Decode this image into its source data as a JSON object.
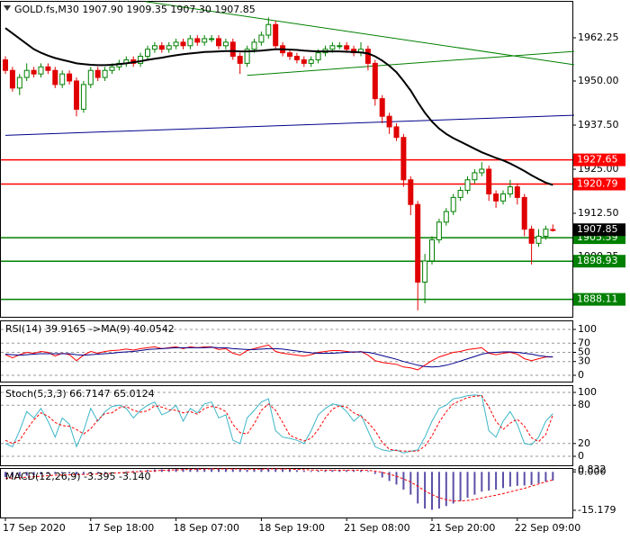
{
  "chart_data": [
    {
      "type": "candlestick",
      "title": "GOLD.fs,M30  1907.90 1909.35 1907.30 1907.85",
      "categories": [
        "17 Sep 2020",
        null,
        null,
        null,
        null,
        null,
        null,
        null,
        null,
        null,
        null,
        null,
        "17 Sep 18:00",
        null,
        null,
        null,
        null,
        null,
        null,
        null,
        null,
        null,
        null,
        null,
        "18 Sep 07:00",
        null,
        null,
        null,
        null,
        null,
        null,
        null,
        null,
        null,
        null,
        null,
        "18 Sep 19:00",
        null,
        null,
        null,
        null,
        null,
        null,
        null,
        null,
        null,
        null,
        null,
        "21 Sep 08:00",
        null,
        null,
        null,
        null,
        null,
        null,
        null,
        null,
        null,
        null,
        null,
        "21 Sep 20:00",
        null,
        null,
        null,
        null,
        null,
        null,
        null,
        null,
        null,
        null,
        null,
        "22 Sep 09:00",
        null,
        null,
        null,
        null,
        null
      ],
      "open": [
        1956,
        1953,
        1948,
        1951,
        1953,
        1952,
        1954,
        1953,
        1949,
        1952,
        1950,
        1942,
        1949,
        1953,
        1951,
        1953,
        1954,
        1955,
        1956,
        1955,
        1957,
        1959,
        1960,
        1959,
        1960,
        1961,
        1960,
        1962,
        1961,
        1962,
        1962,
        1960,
        1961,
        1957,
        1955,
        1959,
        1961,
        1963,
        1966,
        1960,
        1958,
        1957,
        1956,
        1955,
        1956,
        1958,
        1959,
        1960,
        1960,
        1959,
        1958,
        1959,
        1955,
        1945,
        1940,
        1937,
        1934,
        1922,
        1915,
        1893,
        1899,
        1905,
        1910,
        1913,
        1917,
        1919,
        1922,
        1924,
        1925,
        1918,
        1916,
        1918,
        1920,
        1917,
        1908,
        1904,
        1906,
        1907.9
      ],
      "high": [
        1957,
        1954,
        1952,
        1955,
        1954,
        1955,
        1955,
        1954,
        1953,
        1953,
        1951,
        1950,
        1954,
        1954,
        1954,
        1955,
        1956,
        1957,
        1957,
        1958,
        1960,
        1961,
        1961,
        1961,
        1962,
        1962,
        1963,
        1963,
        1963,
        1963,
        1963,
        1962,
        1962,
        1958,
        1960,
        1962,
        1964,
        1968,
        1967,
        1961,
        1959,
        1958,
        1957,
        1957,
        1959,
        1960,
        1961,
        1961,
        1961,
        1960,
        1961,
        1960,
        1956,
        1946,
        1941,
        1938,
        1935,
        1923,
        1916,
        1901,
        1906,
        1911,
        1914,
        1918,
        1920,
        1923,
        1925,
        1927,
        1926,
        1919,
        1919,
        1922,
        1921,
        1918,
        1909,
        1908,
        1909,
        1909.35
      ],
      "low": [
        1952,
        1947,
        1946,
        1950,
        1951,
        1951,
        1952,
        1948,
        1948,
        1949,
        1940,
        1941,
        1948,
        1950,
        1950,
        1952,
        1953,
        1954,
        1954,
        1954,
        1956,
        1958,
        1958,
        1958,
        1959,
        1959,
        1959,
        1960,
        1960,
        1961,
        1959,
        1959,
        1956,
        1952,
        1954,
        1958,
        1960,
        1962,
        1959,
        1957,
        1956,
        1955,
        1954,
        1954,
        1955,
        1957,
        1958,
        1959,
        1958,
        1957,
        1957,
        1953,
        1943,
        1938,
        1935,
        1933,
        1920,
        1912,
        1885,
        1887,
        1898,
        1904,
        1909,
        1912,
        1916,
        1918,
        1921,
        1923,
        1916,
        1914,
        1915,
        1917,
        1915,
        1906,
        1898,
        1903,
        1905,
        1907.3
      ],
      "close": [
        1953,
        1948,
        1951,
        1953,
        1952,
        1954,
        1953,
        1949,
        1952,
        1950,
        1942,
        1949,
        1953,
        1951,
        1953,
        1954,
        1955,
        1956,
        1955,
        1957,
        1959,
        1960,
        1959,
        1960,
        1961,
        1960,
        1962,
        1961,
        1962,
        1962,
        1960,
        1961,
        1957,
        1955,
        1959,
        1961,
        1963,
        1966,
        1960,
        1958,
        1957,
        1956,
        1955,
        1956,
        1958,
        1959,
        1960,
        1960,
        1959,
        1958,
        1959,
        1955,
        1945,
        1940,
        1937,
        1934,
        1922,
        1915,
        1893,
        1899,
        1905,
        1910,
        1913,
        1917,
        1919,
        1922,
        1924,
        1925,
        1918,
        1916,
        1918,
        1920,
        1917,
        1908,
        1904,
        1906,
        1908,
        1907.85
      ],
      "up_color": "#008000",
      "down_color": "#e00000",
      "series": [
        {
          "color": "#000000",
          "values": [
            1965,
            1963.5,
            1962,
            1960.5,
            1959,
            1958,
            1957.2,
            1956.5,
            1956,
            1955.5,
            1955,
            1954.8,
            1954.6,
            1954.5,
            1954.5,
            1954.6,
            1954.8,
            1955,
            1955.3,
            1955.6,
            1956,
            1956.3,
            1956.6,
            1957,
            1957.3,
            1957.6,
            1957.8,
            1958,
            1958.2,
            1958.3,
            1958.4,
            1958.5,
            1958.5,
            1958.4,
            1958.4,
            1958.5,
            1958.6,
            1958.8,
            1959,
            1959,
            1958.9,
            1958.8,
            1958.6,
            1958.5,
            1958.4,
            1958.4,
            1958.4,
            1958.4,
            1958.3,
            1958.2,
            1958.1,
            1957.8,
            1957,
            1955.8,
            1954.3,
            1952.5,
            1950,
            1947.3,
            1944,
            1941,
            1938.5,
            1936.5,
            1935,
            1933.8,
            1932.8,
            1931.8,
            1930.8,
            1929.8,
            1929,
            1928.2,
            1927.5,
            1926.6,
            1925.6,
            1924.5,
            1923.3,
            1922.2,
            1921.2,
            1920.5
          ]
        }
      ],
      "levels": [
        {
          "value": 1927.65,
          "color": "#ff0000"
        },
        {
          "value": 1920.79,
          "color": "#ff0000"
        },
        {
          "value": 1905.59,
          "color": "#008000"
        },
        {
          "value": 1898.93,
          "color": "#008000"
        },
        {
          "value": 1888.11,
          "color": "#008000"
        }
      ],
      "trendlines": [
        {
          "color": "#00008b",
          "from": [
            0,
            1934.6
          ],
          "to": [
            80,
            1940.3
          ]
        },
        {
          "color": "#008000",
          "from": [
            19.7,
            1972.5
          ],
          "to": [
            80,
            1954.6
          ]
        },
        {
          "color": "#008000",
          "from": [
            34,
            1951.6
          ],
          "to": [
            80,
            1958.4
          ]
        }
      ],
      "ylim": [
        1883.17,
        1972.7
      ],
      "yticks": [
        1962.25,
        {
          "value": 1950,
          "label": "1950.00"
        },
        {
          "value": 1937.5,
          "label": "1937.50"
        },
        {
          "value": 1925,
          "label": "1925.00"
        },
        {
          "value": 1912.5,
          "label": "1912.50"
        },
        1900.25
      ],
      "grid": false
    },
    {
      "type": "line",
      "title": "RSI(14) 39.9165 ->MA(9) 40.0542",
      "series": [
        {
          "color": "#ff0000",
          "values": [
            45,
            38,
            45,
            50,
            48,
            52,
            50,
            42,
            48,
            45,
            32,
            44,
            52,
            48,
            52,
            54,
            55,
            57,
            55,
            58,
            60,
            62,
            58,
            60,
            62,
            58,
            62,
            60,
            62,
            62,
            56,
            58,
            48,
            44,
            54,
            58,
            62,
            66,
            52,
            48,
            46,
            44,
            42,
            45,
            50,
            52,
            54,
            54,
            52,
            50,
            52,
            44,
            32,
            28,
            26,
            24,
            18,
            16,
            12,
            22,
            32,
            40,
            45,
            50,
            52,
            56,
            58,
            60,
            48,
            45,
            48,
            50,
            46,
            36,
            32,
            36,
            40,
            39.9165
          ]
        },
        {
          "color": "#00008b",
          "values": [
            46,
            45,
            44,
            45,
            46,
            47,
            47,
            47,
            47,
            47,
            45,
            44,
            45,
            46,
            47,
            48,
            50,
            51,
            52,
            54,
            56,
            57,
            58,
            59,
            60,
            60,
            60,
            60,
            60,
            61,
            60,
            60,
            58,
            57,
            56,
            56,
            57,
            58,
            58,
            57,
            55,
            53,
            51,
            49,
            48,
            48,
            48,
            49,
            50,
            51,
            51,
            50,
            47,
            43,
            39,
            35,
            30,
            26,
            22,
            19,
            18,
            19,
            22,
            26,
            31,
            36,
            41,
            46,
            49,
            50,
            51,
            51,
            50,
            48,
            46,
            43,
            41,
            40.0542
          ]
        }
      ],
      "ylim": [
        -13.7,
        119.6
      ],
      "yticks": [
        100,
        70,
        50,
        30,
        0
      ],
      "grid": true
    },
    {
      "type": "line",
      "title": "Stoch(5,3,3) 66.7147 65.0124",
      "series": [
        {
          "color": "#3cb6c8",
          "values": [
            20,
            15,
            40,
            70,
            60,
            75,
            55,
            30,
            60,
            50,
            15,
            40,
            75,
            55,
            70,
            78,
            80,
            75,
            60,
            72,
            80,
            85,
            65,
            70,
            80,
            55,
            75,
            68,
            82,
            85,
            60,
            65,
            25,
            20,
            60,
            72,
            85,
            90,
            40,
            30,
            28,
            25,
            20,
            40,
            65,
            75,
            82,
            80,
            70,
            55,
            65,
            40,
            15,
            10,
            8,
            10,
            5,
            8,
            10,
            30,
            55,
            75,
            80,
            90,
            92,
            95,
            96,
            95,
            40,
            30,
            55,
            70,
            50,
            20,
            18,
            30,
            55,
            66.7147
          ]
        },
        {
          "color": "#ff0000",
          "dash": true,
          "values": [
            25,
            20,
            25,
            42,
            57,
            68,
            63,
            53,
            48,
            47,
            42,
            35,
            43,
            57,
            67,
            68,
            76,
            78,
            72,
            69,
            71,
            79,
            77,
            73,
            72,
            68,
            70,
            66,
            75,
            78,
            76,
            70,
            50,
            37,
            35,
            51,
            72,
            82,
            72,
            53,
            33,
            28,
            24,
            28,
            42,
            60,
            74,
            79,
            77,
            68,
            63,
            53,
            40,
            22,
            11,
            9,
            8,
            8,
            8,
            16,
            32,
            53,
            70,
            82,
            87,
            92,
            94,
            95,
            77,
            55,
            42,
            52,
            58,
            47,
            29,
            23,
            34,
            65.0124
          ]
        }
      ],
      "ylim": [
        -14.1,
        111.3
      ],
      "yticks": [
        100,
        80,
        20,
        0
      ],
      "grid": true
    },
    {
      "type": "bar",
      "title": "MACD(12,26,9) -3.395 -3.140",
      "color": "#5a4fa8",
      "values": [
        -2,
        -2,
        -1.8,
        -1.5,
        -1.3,
        -1,
        -0.8,
        -0.8,
        -0.6,
        -0.6,
        -1,
        -0.9,
        -0.6,
        -0.5,
        -0.3,
        -0.1,
        0.1,
        0.3,
        0.4,
        0.6,
        0.8,
        1,
        1,
        1.1,
        1.2,
        1.2,
        1.3,
        1.3,
        1.3,
        1.4,
        1.3,
        1.3,
        1.1,
        0.9,
        0.9,
        1,
        1.2,
        1.5,
        1.3,
        1.1,
        0.9,
        0.7,
        0.5,
        0.4,
        0.5,
        0.6,
        0.7,
        0.7,
        0.7,
        0.6,
        0.6,
        0.3,
        -0.8,
        -2.2,
        -3.6,
        -5,
        -7,
        -9,
        -12.5,
        -14.5,
        -15,
        -14.5,
        -13.5,
        -12.5,
        -11.5,
        -10.2,
        -9,
        -7.8,
        -7.4,
        -7,
        -6.4,
        -5.8,
        -5.5,
        -5.4,
        -5.2,
        -4.5,
        -3.8,
        -3.395
      ],
      "series": [
        {
          "color": "#ff0000",
          "dash": true,
          "values": [
            -2.5,
            -2.4,
            -2.3,
            -2.1,
            -1.9,
            -1.7,
            -1.5,
            -1.3,
            -1.2,
            -1.1,
            -1.1,
            -1,
            -0.9,
            -0.8,
            -0.7,
            -0.5,
            -0.4,
            -0.2,
            0,
            0.1,
            0.3,
            0.4,
            0.6,
            0.7,
            0.8,
            0.9,
            1,
            1.1,
            1.1,
            1.2,
            1.2,
            1.2,
            1.2,
            1.1,
            1.1,
            1.1,
            1.1,
            1.2,
            1.2,
            1.2,
            1.1,
            1,
            0.9,
            0.8,
            0.7,
            0.7,
            0.7,
            0.7,
            0.7,
            0.7,
            0.7,
            0.6,
            0.3,
            -0.2,
            -0.9,
            -1.7,
            -2.8,
            -4,
            -5.7,
            -7.5,
            -9,
            -10.2,
            -11,
            -11.5,
            -11.5,
            -11.3,
            -10.9,
            -10.3,
            -9.7,
            -9.2,
            -8.6,
            -7.9,
            -7.2,
            -6.5,
            -5.6,
            -4.8,
            -3.9,
            -3.14
          ]
        }
      ],
      "ylim": [
        -18.03,
        1.54
      ],
      "yticks": [
        0.832,
        {
          "value": 0,
          "label": "0.000"
        },
        -15.179
      ],
      "grid": false
    }
  ]
}
